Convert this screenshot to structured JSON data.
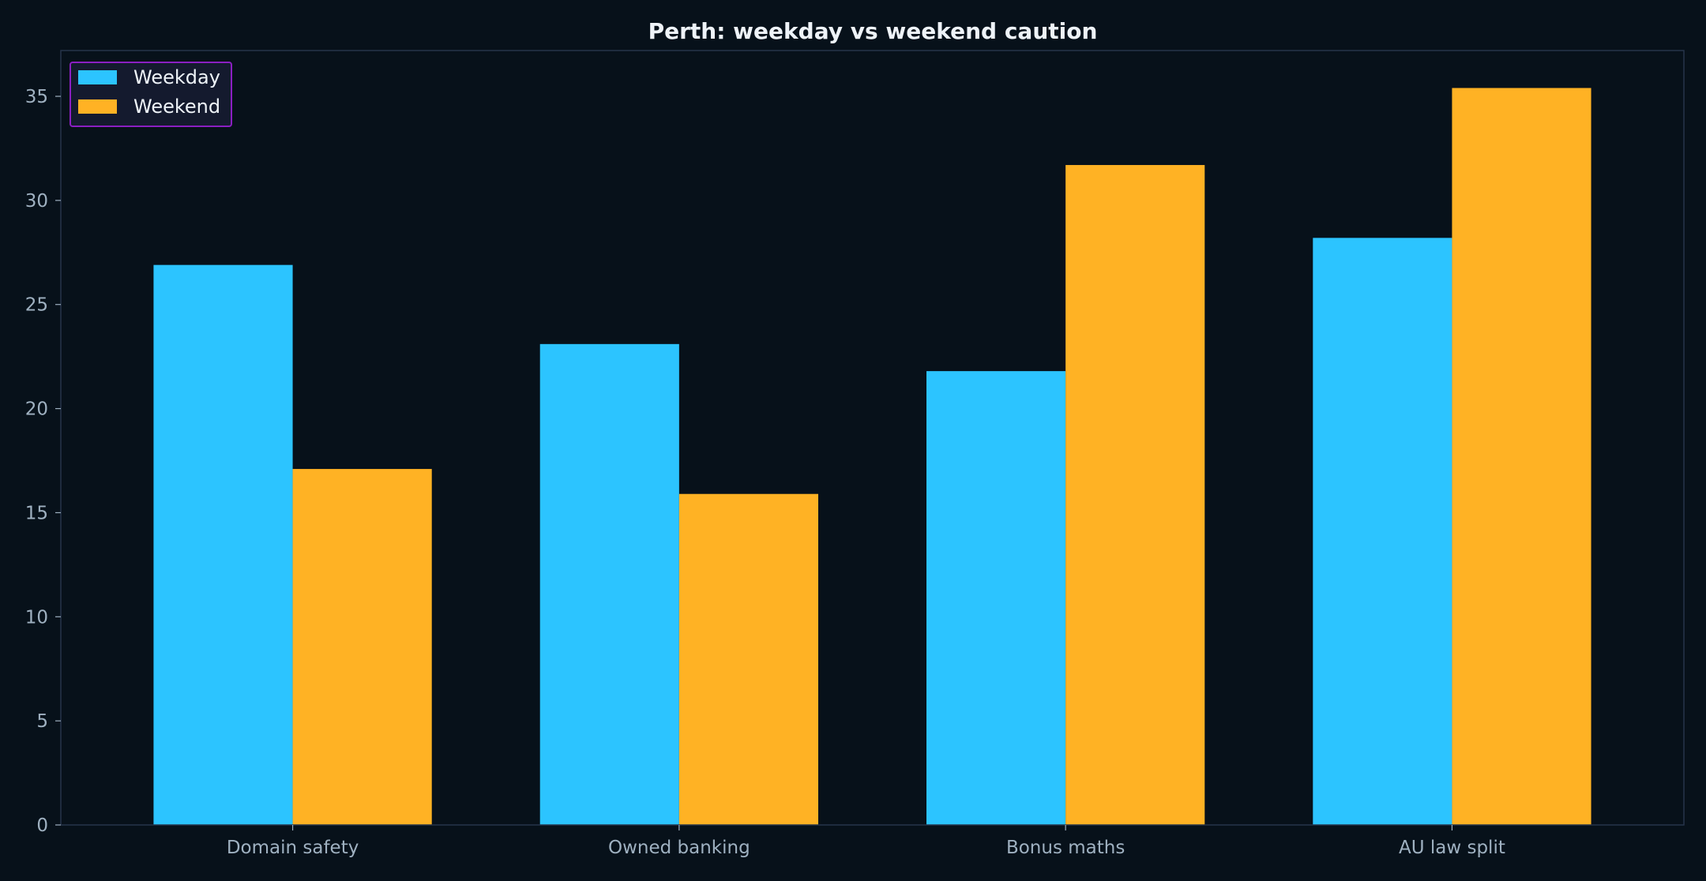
{
  "chart_data": {
    "type": "bar",
    "title": "Perth: weekday vs weekend caution",
    "xlabel": "",
    "ylabel": "",
    "categories": [
      "Domain safety",
      "Owned banking",
      "Bonus maths",
      "AU law split"
    ],
    "series": [
      {
        "name": "Weekday",
        "values": [
          26.9,
          23.1,
          21.8,
          28.2
        ],
        "color": "#2cc4ff"
      },
      {
        "name": "Weekend",
        "values": [
          17.1,
          15.9,
          31.7,
          35.4
        ],
        "color": "#ffb224"
      }
    ],
    "ylim": [
      0,
      37.2
    ],
    "yticks": [
      0,
      5,
      10,
      15,
      20,
      25,
      30,
      35
    ],
    "grid": false,
    "legend": "top-left",
    "colors": {
      "background": "#07111a",
      "axes_frame": "#26344a",
      "legend_border": "#8b1fc2",
      "legend_bg": "#141a2e"
    }
  }
}
